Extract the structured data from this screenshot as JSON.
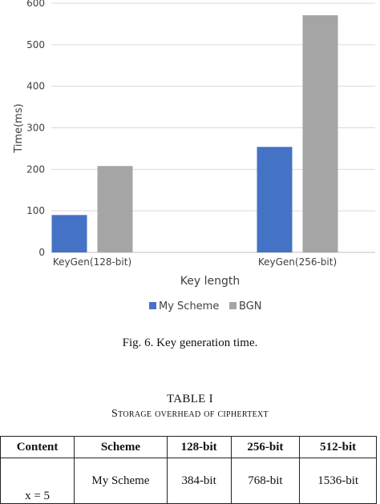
{
  "chart_data": {
    "type": "bar",
    "categories": [
      "KeyGen(128-bit)",
      "KeyGen(256-bit)"
    ],
    "series": [
      {
        "name": "My Scheme",
        "values": [
          90,
          254
        ],
        "color": "#4472c4"
      },
      {
        "name": "BGN",
        "values": [
          208,
          571
        ],
        "color": "#a5a5a5"
      }
    ],
    "xlabel": "Key length",
    "ylabel": "Time(ms)",
    "ylim": [
      0,
      600
    ],
    "yticks": [
      "0",
      "100",
      "200",
      "300",
      "400",
      "500",
      "600"
    ],
    "grid": true,
    "legend": "bottom-center"
  },
  "figure": {
    "caption": "Fig. 6.  Key generation time."
  },
  "table": {
    "title": "TABLE I",
    "subtitle": "Storage overhead of ciphertext",
    "headers": [
      "Content",
      "Scheme",
      "128-bit",
      "256-bit",
      "512-bit"
    ],
    "rows": [
      {
        "content": "x = 5",
        "scheme": "My Scheme",
        "b128": "384-bit",
        "b256": "768-bit",
        "b512": "1536-bit"
      }
    ]
  }
}
